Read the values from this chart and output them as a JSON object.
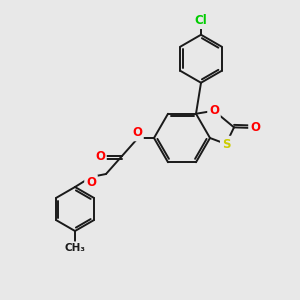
{
  "bg_color": "#e8e8e8",
  "bond_color": "#1a1a1a",
  "atom_colors": {
    "O": "#ff0000",
    "S": "#cccc00",
    "Cl": "#00cc00",
    "C": "#1a1a1a"
  },
  "figsize": [
    3.0,
    3.0
  ],
  "dpi": 100
}
